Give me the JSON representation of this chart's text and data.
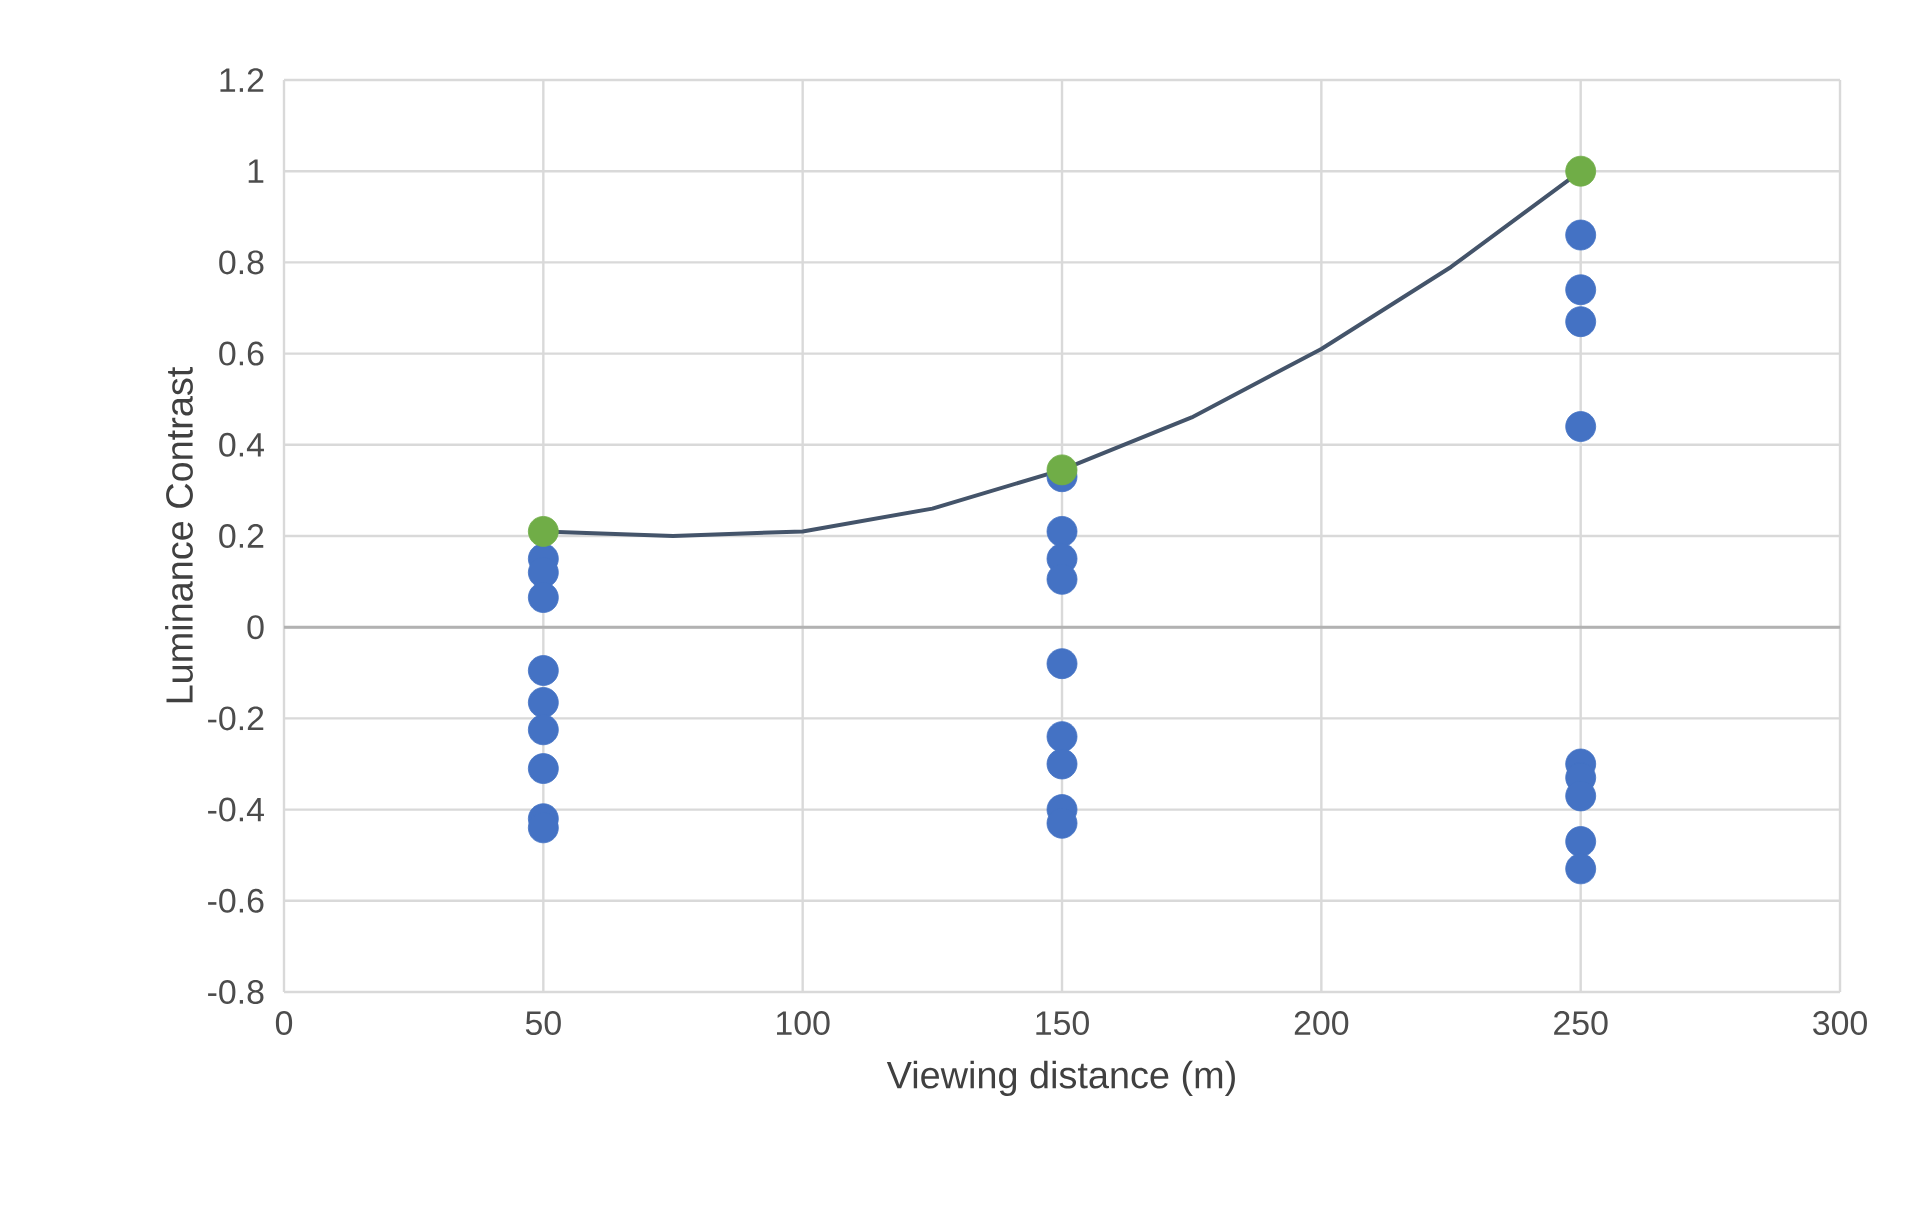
{
  "chart_data": {
    "type": "scatter",
    "xlabel": "Viewing distance (m)",
    "ylabel": "Luminance Contrast",
    "xlim": [
      0,
      300
    ],
    "ylim": [
      -0.8,
      1.2
    ],
    "xticks": [
      0,
      50,
      100,
      150,
      200,
      250,
      300
    ],
    "yticks": [
      -0.8,
      -0.6,
      -0.4,
      -0.2,
      0,
      0.2,
      0.4,
      0.6,
      0.8,
      1,
      1.2
    ],
    "grid": true,
    "marker": "circle",
    "series": [
      {
        "color": "#4472c4",
        "x": [
          50,
          50,
          50,
          50,
          50,
          50,
          50,
          50,
          50,
          150,
          150,
          150,
          150,
          150,
          150,
          150,
          150,
          150,
          250,
          250,
          250,
          250,
          250,
          250,
          250,
          250,
          250
        ],
        "values": [
          0.15,
          0.12,
          0.065,
          -0.095,
          -0.165,
          -0.225,
          -0.31,
          -0.42,
          -0.44,
          0.33,
          0.21,
          0.15,
          0.105,
          -0.08,
          -0.24,
          -0.3,
          -0.4,
          -0.43,
          0.86,
          0.74,
          0.67,
          0.44,
          -0.3,
          -0.33,
          -0.37,
          -0.47,
          -0.53
        ]
      },
      {
        "type": "line",
        "color": "#44546a",
        "marker": "none",
        "x": [
          50,
          75,
          100,
          125,
          150,
          175,
          200,
          225,
          250
        ],
        "values": [
          0.21,
          0.2,
          0.21,
          0.26,
          0.345,
          0.46,
          0.61,
          0.79,
          1.0
        ]
      },
      {
        "color": "#70ad47",
        "x": [
          50,
          150,
          250
        ],
        "values": [
          0.21,
          0.345,
          1.0
        ]
      }
    ]
  }
}
